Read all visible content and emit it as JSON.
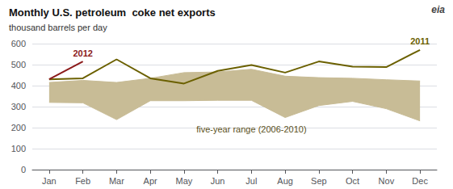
{
  "chart_data": {
    "type": "line",
    "title": "Monthly U.S. petroleum  coke net exports",
    "subtitle": "thousand barrels per day",
    "annotations": [
      "eia"
    ],
    "categories": [
      "Jan",
      "Feb",
      "Mar",
      "Apr",
      "May",
      "Jun",
      "Jul",
      "Aug",
      "Sep",
      "Oct",
      "Nov",
      "Dec"
    ],
    "series": [
      {
        "name": "five-year range (2006-2010)",
        "type": "range",
        "color": "#c8bc96",
        "upper": [
          415,
          425,
          415,
          435,
          462,
          465,
          478,
          445,
          438,
          435,
          428,
          422
        ],
        "lower": [
          320,
          318,
          238,
          328,
          328,
          330,
          330,
          248,
          305,
          325,
          290,
          232
        ]
      },
      {
        "name": "2011",
        "type": "line",
        "color": "#6b6000",
        "values": [
          430,
          435,
          525,
          435,
          410,
          470,
          498,
          462,
          515,
          490,
          488,
          570
        ]
      },
      {
        "name": "2012",
        "type": "line",
        "color": "#8b1a1a",
        "values": [
          430,
          515,
          null,
          null,
          null,
          null,
          null,
          null,
          null,
          null,
          null,
          null
        ]
      }
    ],
    "ylim": [
      0,
      600
    ],
    "yticks": [
      0,
      100,
      200,
      300,
      400,
      500,
      600
    ],
    "grid": true
  }
}
